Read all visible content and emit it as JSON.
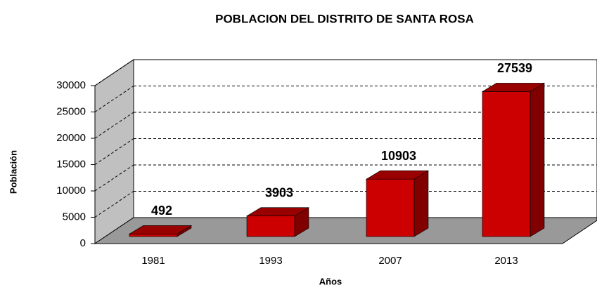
{
  "chart_data": {
    "type": "bar3d",
    "title": "POBLACION  DEL DISTRITO DE  SANTA  ROSA",
    "x_label": "Años",
    "y_label": "Población",
    "categories": [
      "1981",
      "1993",
      "2007",
      "2013"
    ],
    "values": [
      492,
      3903,
      10903,
      27539
    ],
    "color": "#cc0000",
    "ylim": [
      0,
      30000
    ],
    "yticks": [
      0,
      5000,
      10000,
      15000,
      20000,
      25000,
      30000
    ],
    "grid": true
  }
}
